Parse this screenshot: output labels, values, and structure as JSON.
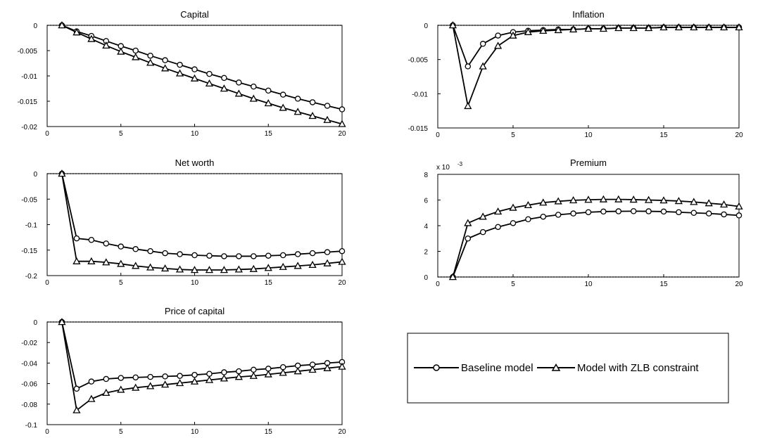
{
  "chart_data": [
    {
      "type": "line",
      "title": "Capital",
      "x": [
        1,
        2,
        3,
        4,
        5,
        6,
        7,
        8,
        9,
        10,
        11,
        12,
        13,
        14,
        15,
        16,
        17,
        18,
        19,
        20
      ],
      "xlim": [
        0,
        20
      ],
      "xticks": [
        "0",
        "5",
        "10",
        "15",
        "20"
      ],
      "ylim": [
        -0.02,
        0
      ],
      "yticks": [
        "0",
        "-0.005",
        "-0.01",
        "-0.015",
        "-0.02"
      ],
      "y_exponent_label": "",
      "zero_line": "dotted",
      "series": [
        {
          "name": "Baseline model",
          "marker": "circle",
          "values": [
            0,
            -0.0012,
            -0.0021,
            -0.0031,
            -0.0041,
            -0.005,
            -0.006,
            -0.0069,
            -0.0078,
            -0.0087,
            -0.0096,
            -0.0104,
            -0.0113,
            -0.0121,
            -0.0129,
            -0.0137,
            -0.0145,
            -0.0152,
            -0.0159,
            -0.0166
          ]
        },
        {
          "name": "Model with ZLB constraint",
          "marker": "triangle",
          "values": [
            0,
            -0.0014,
            -0.0027,
            -0.004,
            -0.0052,
            -0.0063,
            -0.0074,
            -0.0085,
            -0.0095,
            -0.0105,
            -0.0115,
            -0.0125,
            -0.0135,
            -0.0145,
            -0.0154,
            -0.0163,
            -0.0171,
            -0.0179,
            -0.0187,
            -0.0195
          ]
        }
      ]
    },
    {
      "type": "line",
      "title": "Inflation",
      "x": [
        1,
        2,
        3,
        4,
        5,
        6,
        7,
        8,
        9,
        10,
        11,
        12,
        13,
        14,
        15,
        16,
        17,
        18,
        19,
        20
      ],
      "xlim": [
        0,
        20
      ],
      "xticks": [
        "0",
        "5",
        "10",
        "15",
        "20"
      ],
      "ylim": [
        -0.015,
        0
      ],
      "yticks": [
        "0",
        "-0.005",
        "-0.01",
        "-0.015"
      ],
      "y_exponent_label": "",
      "zero_line": "dotted",
      "series": [
        {
          "name": "Baseline model",
          "marker": "circle",
          "values": [
            0,
            -0.006,
            -0.0027,
            -0.0015,
            -0.001,
            -0.0008,
            -0.0007,
            -0.0006,
            -0.0006,
            -0.0005,
            -0.0005,
            -0.0004,
            -0.0004,
            -0.0004,
            -0.0003,
            -0.0003,
            -0.0003,
            -0.0003,
            -0.0003,
            -0.0003
          ]
        },
        {
          "name": "Model with ZLB constraint",
          "marker": "triangle",
          "values": [
            0,
            -0.0118,
            -0.006,
            -0.003,
            -0.0015,
            -0.001,
            -0.0008,
            -0.0007,
            -0.0006,
            -0.0005,
            -0.0005,
            -0.0004,
            -0.0004,
            -0.0004,
            -0.0003,
            -0.0003,
            -0.0003,
            -0.0003,
            -0.0003,
            -0.0003
          ]
        }
      ]
    },
    {
      "type": "line",
      "title": "Net worth",
      "x": [
        1,
        2,
        3,
        4,
        5,
        6,
        7,
        8,
        9,
        10,
        11,
        12,
        13,
        14,
        15,
        16,
        17,
        18,
        19,
        20
      ],
      "xlim": [
        0,
        20
      ],
      "xticks": [
        "0",
        "5",
        "10",
        "15",
        "20"
      ],
      "ylim": [
        -0.2,
        0
      ],
      "yticks": [
        "0",
        "-0.05",
        "-0.1",
        "-0.15",
        "-0.2"
      ],
      "y_exponent_label": "",
      "zero_line": "dotted",
      "series": [
        {
          "name": "Baseline model",
          "marker": "circle",
          "values": [
            0,
            -0.127,
            -0.13,
            -0.137,
            -0.143,
            -0.148,
            -0.152,
            -0.156,
            -0.158,
            -0.16,
            -0.161,
            -0.162,
            -0.162,
            -0.162,
            -0.161,
            -0.16,
            -0.158,
            -0.156,
            -0.154,
            -0.152
          ]
        },
        {
          "name": "Model with ZLB constraint",
          "marker": "triangle",
          "values": [
            0,
            -0.172,
            -0.172,
            -0.174,
            -0.177,
            -0.181,
            -0.184,
            -0.186,
            -0.188,
            -0.189,
            -0.189,
            -0.189,
            -0.188,
            -0.187,
            -0.185,
            -0.183,
            -0.181,
            -0.179,
            -0.176,
            -0.173
          ]
        }
      ]
    },
    {
      "type": "line",
      "title": "Premium",
      "x": [
        1,
        2,
        3,
        4,
        5,
        6,
        7,
        8,
        9,
        10,
        11,
        12,
        13,
        14,
        15,
        16,
        17,
        18,
        19,
        20
      ],
      "xlim": [
        0,
        20
      ],
      "xticks": [
        "0",
        "5",
        "10",
        "15",
        "20"
      ],
      "ylim": [
        0,
        8
      ],
      "yticks": [
        "8",
        "6",
        "4",
        "2",
        "0"
      ],
      "y_exponent_label": "x 10",
      "y_exponent_power": "-3",
      "zero_line": "dotted",
      "series": [
        {
          "name": "Baseline model",
          "marker": "circle",
          "values": [
            0,
            3.0,
            3.5,
            3.9,
            4.2,
            4.5,
            4.7,
            4.85,
            4.95,
            5.05,
            5.1,
            5.12,
            5.13,
            5.12,
            5.1,
            5.05,
            5.0,
            4.95,
            4.88,
            4.8
          ]
        },
        {
          "name": "Model with ZLB constraint",
          "marker": "triangle",
          "values": [
            0,
            4.2,
            4.7,
            5.1,
            5.4,
            5.6,
            5.8,
            5.9,
            5.98,
            6.02,
            6.05,
            6.05,
            6.03,
            6.0,
            5.97,
            5.92,
            5.85,
            5.75,
            5.65,
            5.5
          ]
        }
      ]
    },
    {
      "type": "line",
      "title": "Price of capital",
      "x": [
        1,
        2,
        3,
        4,
        5,
        6,
        7,
        8,
        9,
        10,
        11,
        12,
        13,
        14,
        15,
        16,
        17,
        18,
        19,
        20
      ],
      "xlim": [
        0,
        20
      ],
      "xticks": [
        "0",
        "5",
        "10",
        "15",
        "20"
      ],
      "ylim": [
        -0.1,
        0
      ],
      "yticks": [
        "0",
        "-0.02",
        "-0.04",
        "-0.06",
        "-0.08",
        "-0.1"
      ],
      "y_exponent_label": "",
      "zero_line": "dotted",
      "series": [
        {
          "name": "Baseline model",
          "marker": "circle",
          "values": [
            0,
            -0.065,
            -0.058,
            -0.0555,
            -0.0545,
            -0.054,
            -0.0535,
            -0.053,
            -0.0525,
            -0.0515,
            -0.0505,
            -0.049,
            -0.048,
            -0.0465,
            -0.0455,
            -0.044,
            -0.0425,
            -0.0415,
            -0.04,
            -0.039
          ]
        },
        {
          "name": "Model with ZLB constraint",
          "marker": "triangle",
          "values": [
            0,
            -0.086,
            -0.075,
            -0.069,
            -0.066,
            -0.064,
            -0.0625,
            -0.061,
            -0.0595,
            -0.058,
            -0.0565,
            -0.055,
            -0.0535,
            -0.0525,
            -0.051,
            -0.0495,
            -0.048,
            -0.0465,
            -0.045,
            -0.0435
          ]
        }
      ]
    }
  ],
  "legend": {
    "entries": [
      {
        "label": "Baseline model",
        "marker": "circle"
      },
      {
        "label": "Model with ZLB constraint",
        "marker": "triangle"
      }
    ]
  },
  "colors": {
    "line": "#000000",
    "marker_fill": "#ffffff",
    "background": "#ffffff"
  }
}
